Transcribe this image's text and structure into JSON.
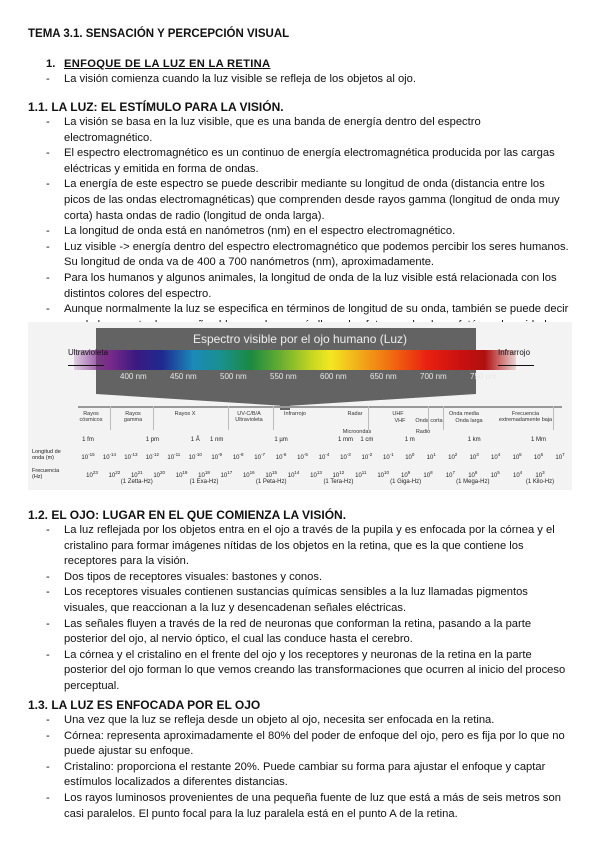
{
  "title": "TEMA 3.1. SENSACIÓN Y PERCEPCIÓN VISUAL",
  "section1": {
    "number": "1.",
    "heading": "ENFOQUE DE LA LUZ EN LA RETINA",
    "items": [
      "La visión comienza cuando la luz visible se refleja de los objetos al ojo."
    ]
  },
  "section1_1": {
    "heading": "1.1. LA LUZ: EL ESTÍMULO PARA LA VISIÓN.",
    "items": [
      "La visión se basa en la luz visible, que es una banda de energía dentro del espectro electromagnético.",
      "El espectro electromagnético es un continuo de energía electromagnética producida por las cargas eléctricas y emitida en forma de ondas.",
      "La energía de este espectro se puede describir mediante su longitud de onda (distancia entre los picos de las ondas electromagnéticas) que comprenden desde rayos gamma (longitud de onda muy corta) hasta ondas de radio (longitud de onda larga).",
      "La longitud de onda está en nanómetros (nm) en el espectro electromagnético.",
      "Luz visible -> energía dentro del espectro electromagnético que podemos percibir los seres humanos. Su longitud de onda va de 400 a 700 nanómetros (nm), aproximadamente.",
      "Para los humanos y algunos animales, la longitud de onda de la luz visible está relacionada con los distintos colores del espectro.",
      "Aunque normalmente la luz se especifica en términos de longitud de su onda, también se puede decir que la luz consta de pequeños bloques de energía llamados fotones, donde un fotón es la unidad mínima de energía luminosa."
    ]
  },
  "figure": {
    "title": "Espectro visible por el ojo humano (Luz)",
    "left_label": "Ultravioleta",
    "right_label": "Infrarrojo",
    "nm_labels": [
      "400 nm",
      "450 nm",
      "500 nm",
      "550 nm",
      "600 nm",
      "650 nm",
      "700 nm",
      "750 nm"
    ],
    "bands": [
      "Rayos cósmicos",
      "Rayos gamma",
      "Rayos X",
      "UV-C/B/A Ultravioleta",
      "Infrarrojo",
      "Radar",
      "Microondas",
      "UHF",
      "VHF",
      "Onda corta",
      "Onda media",
      "Onda larga",
      "Radio",
      "Frecuencia extremadamente baja"
    ],
    "unit_labels": [
      {
        "label": "1 fm",
        "exp": -15
      },
      {
        "label": "1 pm",
        "exp": -12
      },
      {
        "label": "1 Å",
        "exp": -10
      },
      {
        "label": "1 nm",
        "exp": -9
      },
      {
        "label": "1 µm",
        "exp": -6
      },
      {
        "label": "1 mm",
        "exp": -3
      },
      {
        "label": "1 cm",
        "exp": -2
      },
      {
        "label": "1 m",
        "exp": 0
      },
      {
        "label": "1 km",
        "exp": 3
      },
      {
        "label": "1 Mm",
        "exp": 6
      }
    ],
    "wavelength_label": "Longitud de onda (m)",
    "wavelength_exponents": [
      -15,
      -14,
      -13,
      -12,
      -11,
      -10,
      -9,
      -8,
      -7,
      -6,
      -5,
      -4,
      -3,
      -2,
      -1,
      0,
      1,
      2,
      3,
      4,
      5,
      6,
      7
    ],
    "frequency_label": "Frecuencia (Hz)",
    "frequency_exponents": [
      23,
      22,
      21,
      20,
      19,
      18,
      17,
      16,
      15,
      14,
      13,
      12,
      11,
      10,
      9,
      8,
      7,
      6,
      5,
      4,
      3
    ],
    "frequency_units": [
      {
        "label": "(1 Zetta-Hz)",
        "exp": 21
      },
      {
        "label": "(1 Exa-Hz)",
        "exp": 18
      },
      {
        "label": "(1 Peta-Hz)",
        "exp": 15
      },
      {
        "label": "(1 Tera-Hz)",
        "exp": 12
      },
      {
        "label": "(1 Giga-Hz)",
        "exp": 9
      },
      {
        "label": "(1 Mega-Hz)",
        "exp": 6
      },
      {
        "label": "(1 Kilo-Hz)",
        "exp": 3
      }
    ]
  },
  "section1_2": {
    "heading": "1.2. EL OJO: LUGAR EN EL QUE COMIENZA LA VISIÓN.",
    "items": [
      "La luz reflejada por los objetos entra en el ojo a través de la pupila y es enfocada por la córnea y el cristalino para formar imágenes nítidas de los objetos en la retina, que es la que contiene los receptores para la visión.",
      "Dos tipos de receptores visuales: bastones y conos.",
      "Los receptores visuales contienen sustancias químicas sensibles a la luz llamadas pigmentos visuales, que reaccionan a la luz y desencadenan señales eléctricas.",
      "Las señales fluyen a través de la red de neuronas que conforman la retina, pasando a la parte posterior del ojo, al nervio óptico, el cual las conduce hasta el cerebro.",
      "La córnea y el cristalino en el frente del ojo y los receptores y neuronas de la retina en la parte posterior del ojo forman lo que vemos creando las transformaciones que ocurren al inicio del proceso perceptual."
    ]
  },
  "section1_3": {
    "heading": "1.3. LA LUZ ES ENFOCADA POR EL OJO",
    "items": [
      "Una vez que la luz se refleja desde un objeto al ojo, necesita ser enfocada en la retina.",
      "Córnea: representa aproximadamente el 80% del poder de enfoque del ojo, pero es fija por lo que no puede ajustar su enfoque.",
      "Cristalino: proporciona el restante 20%. Puede cambiar su forma para ajustar el enfoque y captar estímulos localizados a diferentes distancias.",
      "Los rayos luminosos provenientes de una pequeña fuente de luz que está a más de seis metros son casi paralelos. El punto focal para la luz paralela está en el punto A de la retina."
    ]
  }
}
